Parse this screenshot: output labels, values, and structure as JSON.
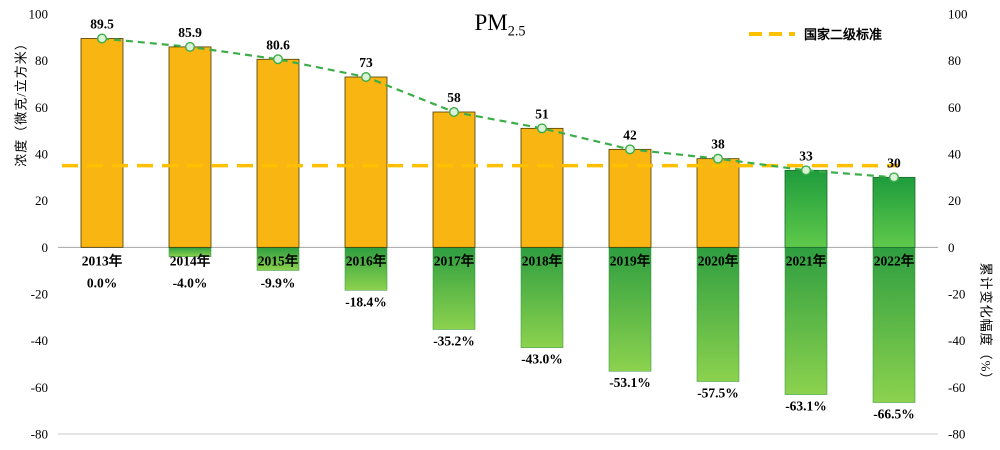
{
  "title": {
    "prefix": "PM",
    "subscript": "2.5"
  },
  "legend": {
    "items": [
      {
        "label": "国家二级标准",
        "color": "#FFC000",
        "style": "dashed-line"
      }
    ],
    "position": "top-right"
  },
  "axes": {
    "left": {
      "title": "浓度（微克/立方米）",
      "ticks": [
        100,
        80,
        60,
        40,
        20,
        0,
        -20,
        -40,
        -60,
        -80
      ]
    },
    "right": {
      "title": "累计变化幅度（%）",
      "ticks": [
        100,
        80,
        60,
        40,
        20,
        0,
        -20,
        -40,
        -60,
        -80
      ]
    }
  },
  "chart_data": {
    "type": "bar",
    "title": "PM2.5",
    "categories": [
      "2013年",
      "2014年",
      "2015年",
      "2016年",
      "2017年",
      "2018年",
      "2019年",
      "2020年",
      "2021年",
      "2022年"
    ],
    "series": [
      {
        "name": "浓度（微克/立方米）",
        "axis": "left",
        "render": "bar+dashed-line-with-markers",
        "values": [
          89.5,
          85.9,
          80.6,
          73,
          58,
          51,
          42,
          38,
          33,
          30
        ],
        "value_labels": [
          "89.5",
          "85.9",
          "80.6",
          "73",
          "58",
          "51",
          "42",
          "38",
          "33",
          "30"
        ]
      },
      {
        "name": "累计变化幅度（%）",
        "axis": "right",
        "render": "bar",
        "values": [
          0.0,
          -4.0,
          -9.9,
          -18.4,
          -35.2,
          -43.0,
          -53.1,
          -57.5,
          -63.1,
          -66.5
        ],
        "value_labels": [
          "0.0%",
          "-4.0%",
          "-9.9%",
          "-18.4%",
          "-35.2%",
          "-43.0%",
          "-53.1%",
          "-57.5%",
          "-63.1%",
          "-66.5%"
        ]
      }
    ],
    "reference_line": {
      "label": "国家二级标准",
      "value": 35,
      "color": "#FFC000"
    },
    "ylim": [
      -80,
      100
    ],
    "grid": false,
    "colors": {
      "concentration_bar": "#F9B511",
      "concentration_bar_stroke": "#4a3a00",
      "standard_met_bar_top": "#1E9C3C",
      "standard_met_bar_bottom": "#5FC94B",
      "standard_met_bar_stroke": "#1c6b2d",
      "standard_met_years": [
        "2021年",
        "2022年"
      ],
      "change_bar_top": "#2E9E40",
      "change_bar_bottom": "#8CD24E",
      "change_bar_stroke": "#2f8f3f",
      "trend_line": "#3CAE49",
      "marker_fill": "#DCF2D8",
      "zero_line": "#a6a6a6",
      "bottom_line": "#c9c9c9"
    }
  }
}
